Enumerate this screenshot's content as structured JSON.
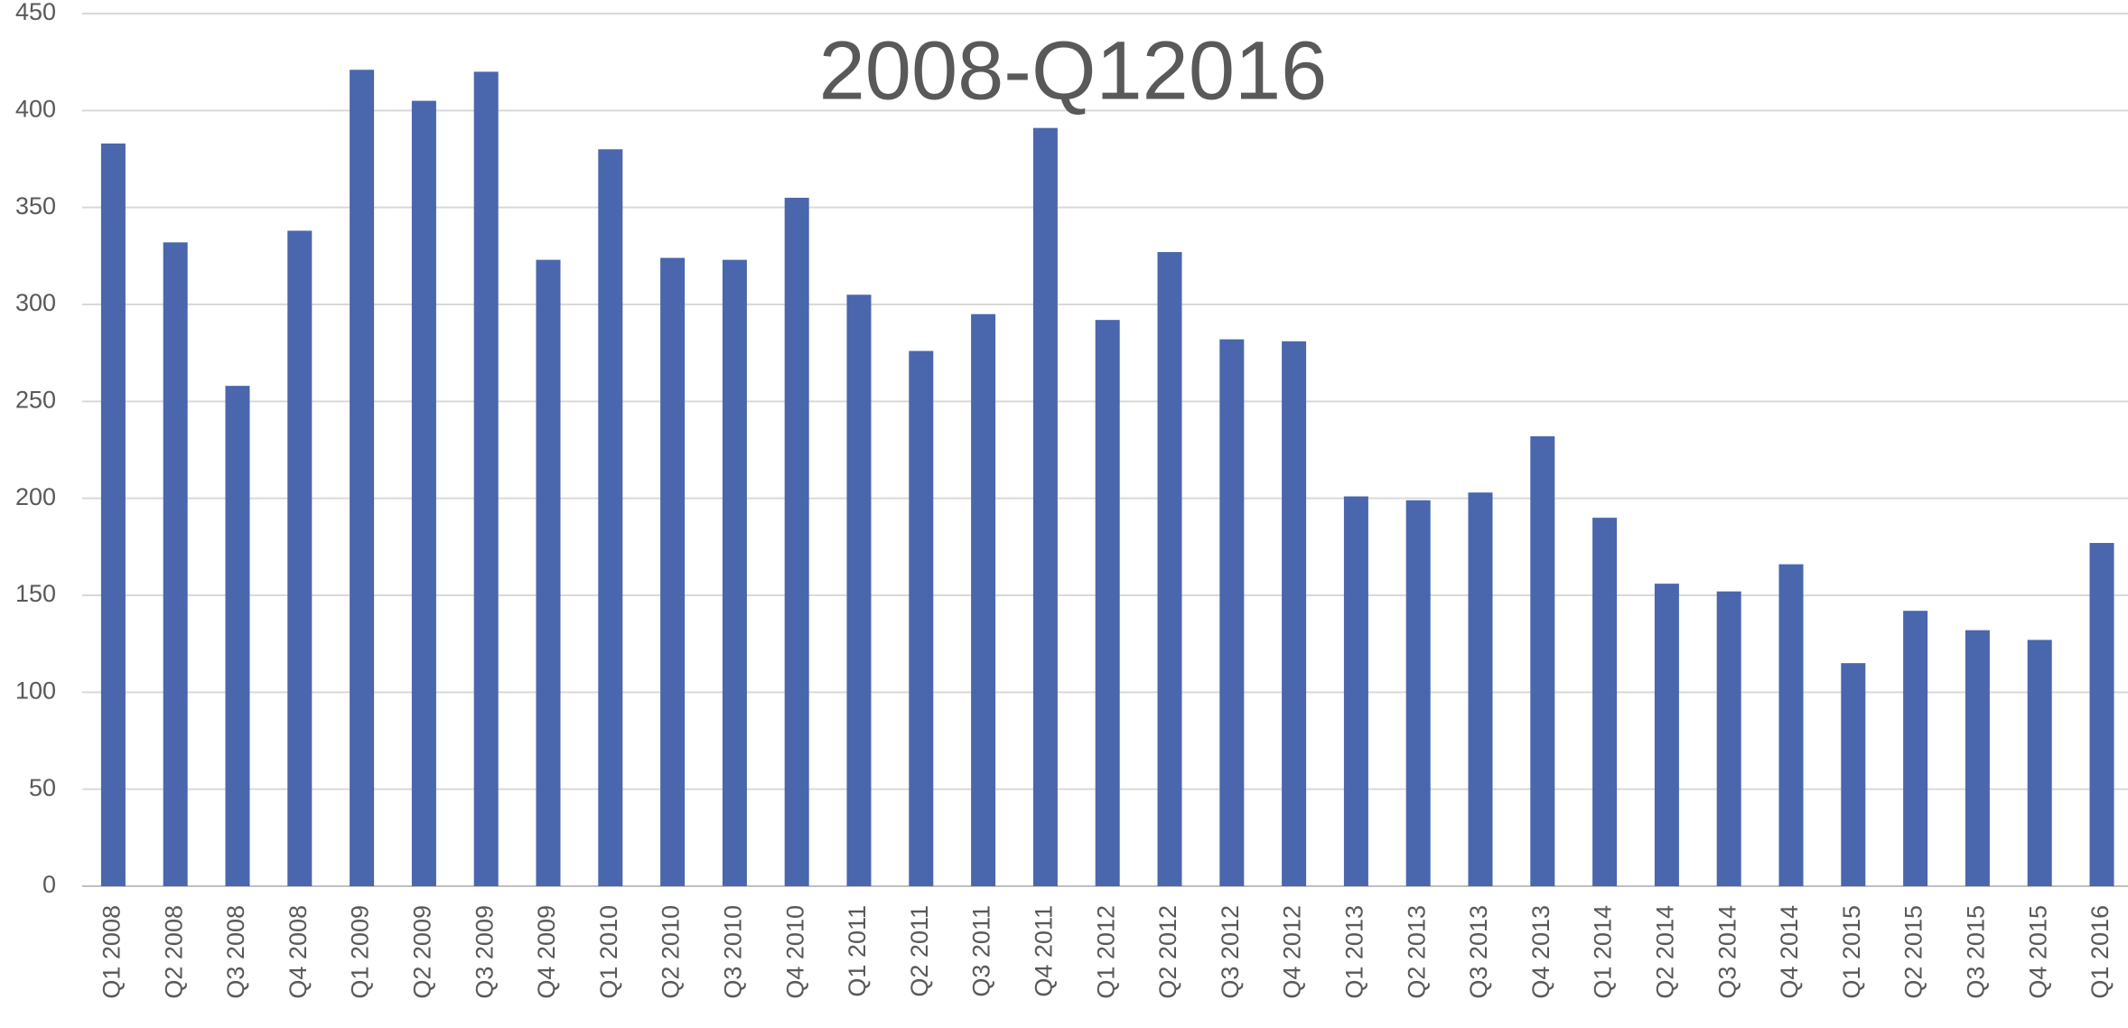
{
  "chart_data": {
    "type": "bar",
    "title": "2008-Q12016",
    "categories": [
      "Q1 2008",
      "Q2 2008",
      "Q3 2008",
      "Q4 2008",
      "Q1 2009",
      "Q2 2009",
      "Q3 2009",
      "Q4 2009",
      "Q1 2010",
      "Q2 2010",
      "Q3 2010",
      "Q4 2010",
      "Q1 2011",
      "Q2 2011",
      "Q3 2011",
      "Q4 2011",
      "Q1 2012",
      "Q2 2012",
      "Q3 2012",
      "Q4 2012",
      "Q1 2013",
      "Q2 2013",
      "Q3 2013",
      "Q4 2013",
      "Q1 2014",
      "Q2 2014",
      "Q3 2014",
      "Q4 2014",
      "Q1 2015",
      "Q2 2015",
      "Q3 2015",
      "Q4 2015",
      "Q1 2016"
    ],
    "values": [
      383,
      332,
      258,
      338,
      421,
      405,
      420,
      323,
      380,
      324,
      323,
      355,
      305,
      276,
      295,
      391,
      292,
      327,
      282,
      281,
      201,
      199,
      203,
      232,
      190,
      156,
      152,
      166,
      115,
      142,
      132,
      127,
      177
    ],
    "color": "#4a66ac",
    "ylim": [
      0,
      450
    ],
    "yticks": [
      0,
      50,
      100,
      150,
      200,
      250,
      300,
      350,
      400,
      450
    ],
    "grid": true
  }
}
